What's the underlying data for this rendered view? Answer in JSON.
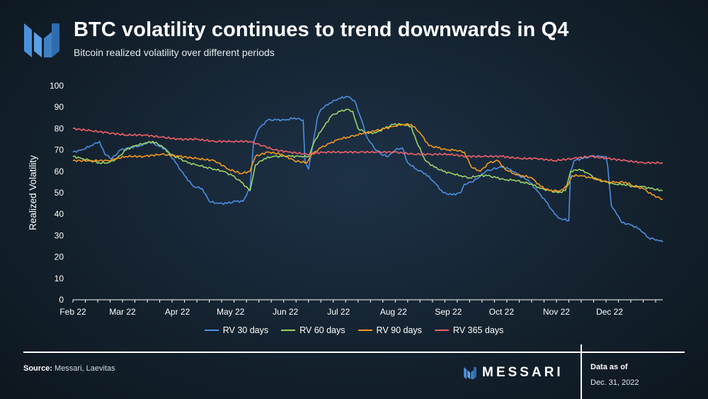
{
  "header": {
    "title": "BTC volatility continues to trend downwards in Q4",
    "subtitle": "Bitcoin realized volatility over different periods"
  },
  "footer": {
    "source_label": "Source:",
    "source_text": "Messari, Laevitas",
    "brand_name": "MESSARI",
    "as_of_label": "Data as of",
    "as_of_date": "Dec. 31, 2022"
  },
  "colors": {
    "rv30": "#4e8fe0",
    "rv60": "#9bd36a",
    "rv90": "#f39a1e",
    "rv365": "#f0606a",
    "logo": "#4a90d9"
  },
  "chart_data": {
    "type": "line",
    "title": "",
    "xlabel": "",
    "ylabel": "Realized Volatility",
    "ylim": [
      0,
      100
    ],
    "yticks": [
      0,
      10,
      20,
      30,
      40,
      50,
      60,
      70,
      80,
      90,
      100
    ],
    "xlim": [
      "2022-02-01",
      "2022-12-31"
    ],
    "xticks": [
      {
        "date": "2022-02-01",
        "label": "Feb 22"
      },
      {
        "date": "2022-03-01",
        "label": "Mar 22"
      },
      {
        "date": "2022-04-01",
        "label": "Apr 22"
      },
      {
        "date": "2022-05-01",
        "label": "May 22"
      },
      {
        "date": "2022-06-01",
        "label": "Jun 22"
      },
      {
        "date": "2022-07-01",
        "label": "Jul 22"
      },
      {
        "date": "2022-08-01",
        "label": "Aug 22"
      },
      {
        "date": "2022-09-01",
        "label": "Sep 22"
      },
      {
        "date": "2022-10-01",
        "label": "Oct 22"
      },
      {
        "date": "2022-11-01",
        "label": "Nov 22"
      },
      {
        "date": "2022-12-01",
        "label": "Dec 22"
      }
    ],
    "legend_position": "bottom",
    "grid": false,
    "series": [
      {
        "name": "RV 30 days",
        "color_key": "rv30",
        "points": [
          [
            "2022-02-01",
            69
          ],
          [
            "2022-02-06",
            70
          ],
          [
            "2022-02-11",
            72
          ],
          [
            "2022-02-16",
            74
          ],
          [
            "2022-02-19",
            68
          ],
          [
            "2022-02-23",
            66
          ],
          [
            "2022-02-28",
            70
          ],
          [
            "2022-03-05",
            71
          ],
          [
            "2022-03-11",
            72
          ],
          [
            "2022-03-16",
            74
          ],
          [
            "2022-03-21",
            72
          ],
          [
            "2022-03-26",
            70
          ],
          [
            "2022-03-31",
            64
          ],
          [
            "2022-04-05",
            58
          ],
          [
            "2022-04-10",
            53
          ],
          [
            "2022-04-15",
            52
          ],
          [
            "2022-04-19",
            46
          ],
          [
            "2022-04-24",
            45
          ],
          [
            "2022-04-29",
            45
          ],
          [
            "2022-05-04",
            46
          ],
          [
            "2022-05-08",
            46
          ],
          [
            "2022-05-12",
            52
          ],
          [
            "2022-05-14",
            74
          ],
          [
            "2022-05-17",
            80
          ],
          [
            "2022-05-22",
            84
          ],
          [
            "2022-05-27",
            84
          ],
          [
            "2022-06-01",
            84
          ],
          [
            "2022-06-06",
            85
          ],
          [
            "2022-06-11",
            84
          ],
          [
            "2022-06-12",
            65
          ],
          [
            "2022-06-14",
            61
          ],
          [
            "2022-06-16",
            70
          ],
          [
            "2022-06-19",
            85
          ],
          [
            "2022-06-21",
            89
          ],
          [
            "2022-06-26",
            92
          ],
          [
            "2022-07-01",
            94
          ],
          [
            "2022-07-06",
            95
          ],
          [
            "2022-07-10",
            93
          ],
          [
            "2022-07-14",
            84
          ],
          [
            "2022-07-17",
            76
          ],
          [
            "2022-07-21",
            71
          ],
          [
            "2022-07-25",
            68
          ],
          [
            "2022-07-29",
            67
          ],
          [
            "2022-08-02",
            70
          ],
          [
            "2022-08-06",
            71
          ],
          [
            "2022-08-09",
            64
          ],
          [
            "2022-08-14",
            61
          ],
          [
            "2022-08-19",
            59
          ],
          [
            "2022-08-24",
            55
          ],
          [
            "2022-08-29",
            50
          ],
          [
            "2022-09-03",
            49
          ],
          [
            "2022-09-08",
            50
          ],
          [
            "2022-09-10",
            54
          ],
          [
            "2022-09-14",
            55
          ],
          [
            "2022-09-18",
            57
          ],
          [
            "2022-09-22",
            60
          ],
          [
            "2022-09-26",
            61
          ],
          [
            "2022-10-01",
            62
          ],
          [
            "2022-10-06",
            61
          ],
          [
            "2022-10-11",
            58
          ],
          [
            "2022-10-16",
            56
          ],
          [
            "2022-10-21",
            51
          ],
          [
            "2022-10-26",
            46
          ],
          [
            "2022-10-31",
            40
          ],
          [
            "2022-11-03",
            38
          ],
          [
            "2022-11-08",
            37
          ],
          [
            "2022-11-09",
            60
          ],
          [
            "2022-11-11",
            65
          ],
          [
            "2022-11-16",
            66
          ],
          [
            "2022-11-21",
            67
          ],
          [
            "2022-11-26",
            67
          ],
          [
            "2022-11-29",
            67
          ],
          [
            "2022-11-30",
            62
          ],
          [
            "2022-12-02",
            44
          ],
          [
            "2022-12-05",
            40
          ],
          [
            "2022-12-08",
            36
          ],
          [
            "2022-12-13",
            35
          ],
          [
            "2022-12-18",
            33
          ],
          [
            "2022-12-23",
            29
          ],
          [
            "2022-12-28",
            28
          ],
          [
            "2022-12-31",
            27
          ]
        ]
      },
      {
        "name": "RV 60 days",
        "color_key": "rv60",
        "points": [
          [
            "2022-02-01",
            67
          ],
          [
            "2022-02-06",
            66
          ],
          [
            "2022-02-11",
            65
          ],
          [
            "2022-02-16",
            64
          ],
          [
            "2022-02-21",
            64
          ],
          [
            "2022-02-26",
            66
          ],
          [
            "2022-03-03",
            70
          ],
          [
            "2022-03-08",
            72
          ],
          [
            "2022-03-13",
            73
          ],
          [
            "2022-03-18",
            74
          ],
          [
            "2022-03-23",
            72
          ],
          [
            "2022-03-28",
            68
          ],
          [
            "2022-04-02",
            66
          ],
          [
            "2022-04-07",
            64
          ],
          [
            "2022-04-12",
            63
          ],
          [
            "2022-04-17",
            62
          ],
          [
            "2022-04-22",
            61
          ],
          [
            "2022-04-27",
            60
          ],
          [
            "2022-05-02",
            58
          ],
          [
            "2022-05-07",
            55
          ],
          [
            "2022-05-12",
            51
          ],
          [
            "2022-05-15",
            63
          ],
          [
            "2022-05-20",
            66
          ],
          [
            "2022-05-25",
            67
          ],
          [
            "2022-05-30",
            67
          ],
          [
            "2022-06-04",
            67
          ],
          [
            "2022-06-09",
            67
          ],
          [
            "2022-06-14",
            67
          ],
          [
            "2022-06-18",
            75
          ],
          [
            "2022-06-22",
            80
          ],
          [
            "2022-06-27",
            86
          ],
          [
            "2022-07-02",
            88
          ],
          [
            "2022-07-06",
            89
          ],
          [
            "2022-07-09",
            88
          ],
          [
            "2022-07-12",
            80
          ],
          [
            "2022-07-17",
            78
          ],
          [
            "2022-07-22",
            78
          ],
          [
            "2022-07-27",
            80
          ],
          [
            "2022-08-01",
            82
          ],
          [
            "2022-08-06",
            82
          ],
          [
            "2022-08-11",
            81
          ],
          [
            "2022-08-14",
            74
          ],
          [
            "2022-08-19",
            65
          ],
          [
            "2022-08-24",
            62
          ],
          [
            "2022-08-29",
            60
          ],
          [
            "2022-09-03",
            59
          ],
          [
            "2022-09-08",
            58
          ],
          [
            "2022-09-13",
            57
          ],
          [
            "2022-09-18",
            58
          ],
          [
            "2022-09-23",
            58
          ],
          [
            "2022-09-28",
            57
          ],
          [
            "2022-10-03",
            56
          ],
          [
            "2022-10-08",
            56
          ],
          [
            "2022-10-13",
            55
          ],
          [
            "2022-10-18",
            54
          ],
          [
            "2022-10-23",
            52
          ],
          [
            "2022-10-28",
            51
          ],
          [
            "2022-11-02",
            50
          ],
          [
            "2022-11-06",
            51
          ],
          [
            "2022-11-09",
            60
          ],
          [
            "2022-11-14",
            61
          ],
          [
            "2022-11-19",
            59
          ],
          [
            "2022-11-24",
            56
          ],
          [
            "2022-11-29",
            55
          ],
          [
            "2022-12-04",
            54
          ],
          [
            "2022-12-09",
            54
          ],
          [
            "2022-12-14",
            53
          ],
          [
            "2022-12-19",
            53
          ],
          [
            "2022-12-24",
            52
          ],
          [
            "2022-12-31",
            51
          ]
        ]
      },
      {
        "name": "RV 90 days",
        "color_key": "rv90",
        "points": [
          [
            "2022-02-01",
            65
          ],
          [
            "2022-02-11",
            65
          ],
          [
            "2022-02-21",
            65
          ],
          [
            "2022-03-03",
            67
          ],
          [
            "2022-03-13",
            67
          ],
          [
            "2022-03-23",
            68
          ],
          [
            "2022-04-02",
            67
          ],
          [
            "2022-04-12",
            66
          ],
          [
            "2022-04-22",
            65
          ],
          [
            "2022-04-30",
            61
          ],
          [
            "2022-05-07",
            59
          ],
          [
            "2022-05-12",
            60
          ],
          [
            "2022-05-15",
            67
          ],
          [
            "2022-05-22",
            69
          ],
          [
            "2022-05-30",
            68
          ],
          [
            "2022-06-06",
            65
          ],
          [
            "2022-06-13",
            64
          ],
          [
            "2022-06-16",
            68
          ],
          [
            "2022-06-21",
            71
          ],
          [
            "2022-06-26",
            73
          ],
          [
            "2022-07-01",
            75
          ],
          [
            "2022-07-06",
            76
          ],
          [
            "2022-07-11",
            77
          ],
          [
            "2022-07-16",
            78
          ],
          [
            "2022-07-22",
            79
          ],
          [
            "2022-07-27",
            80
          ],
          [
            "2022-08-01",
            81
          ],
          [
            "2022-08-06",
            82
          ],
          [
            "2022-08-11",
            82
          ],
          [
            "2022-08-16",
            78
          ],
          [
            "2022-08-21",
            72
          ],
          [
            "2022-08-26",
            71
          ],
          [
            "2022-08-31",
            70
          ],
          [
            "2022-09-05",
            70
          ],
          [
            "2022-09-10",
            69
          ],
          [
            "2022-09-14",
            62
          ],
          [
            "2022-09-19",
            60
          ],
          [
            "2022-09-24",
            64
          ],
          [
            "2022-09-29",
            65
          ],
          [
            "2022-10-03",
            61
          ],
          [
            "2022-10-08",
            59
          ],
          [
            "2022-10-13",
            58
          ],
          [
            "2022-10-18",
            57
          ],
          [
            "2022-10-23",
            53
          ],
          [
            "2022-10-28",
            51
          ],
          [
            "2022-11-03",
            51
          ],
          [
            "2022-11-07",
            53
          ],
          [
            "2022-11-10",
            58
          ],
          [
            "2022-11-15",
            58
          ],
          [
            "2022-11-20",
            57
          ],
          [
            "2022-11-25",
            56
          ],
          [
            "2022-11-30",
            55
          ],
          [
            "2022-12-05",
            55
          ],
          [
            "2022-12-10",
            55
          ],
          [
            "2022-12-15",
            53
          ],
          [
            "2022-12-20",
            52
          ],
          [
            "2022-12-25",
            49
          ],
          [
            "2022-12-31",
            47
          ]
        ]
      },
      {
        "name": "RV 365 days",
        "color_key": "rv365",
        "points": [
          [
            "2022-02-01",
            80
          ],
          [
            "2022-02-11",
            79
          ],
          [
            "2022-02-21",
            78
          ],
          [
            "2022-03-03",
            77
          ],
          [
            "2022-03-13",
            77
          ],
          [
            "2022-03-23",
            76
          ],
          [
            "2022-04-02",
            75
          ],
          [
            "2022-04-12",
            75
          ],
          [
            "2022-04-22",
            74
          ],
          [
            "2022-05-02",
            74
          ],
          [
            "2022-05-12",
            74
          ],
          [
            "2022-05-19",
            72
          ],
          [
            "2022-05-26",
            70
          ],
          [
            "2022-06-03",
            69
          ],
          [
            "2022-06-13",
            68
          ],
          [
            "2022-06-23",
            69
          ],
          [
            "2022-07-03",
            69
          ],
          [
            "2022-07-13",
            69
          ],
          [
            "2022-07-23",
            69
          ],
          [
            "2022-08-02",
            69
          ],
          [
            "2022-08-12",
            68
          ],
          [
            "2022-08-22",
            68
          ],
          [
            "2022-09-01",
            68
          ],
          [
            "2022-09-11",
            67
          ],
          [
            "2022-09-21",
            67
          ],
          [
            "2022-10-01",
            67
          ],
          [
            "2022-10-11",
            66
          ],
          [
            "2022-10-21",
            66
          ],
          [
            "2022-10-31",
            65
          ],
          [
            "2022-11-10",
            66
          ],
          [
            "2022-11-20",
            67
          ],
          [
            "2022-11-30",
            66
          ],
          [
            "2022-12-10",
            65
          ],
          [
            "2022-12-20",
            64
          ],
          [
            "2022-12-31",
            64
          ]
        ]
      }
    ]
  }
}
